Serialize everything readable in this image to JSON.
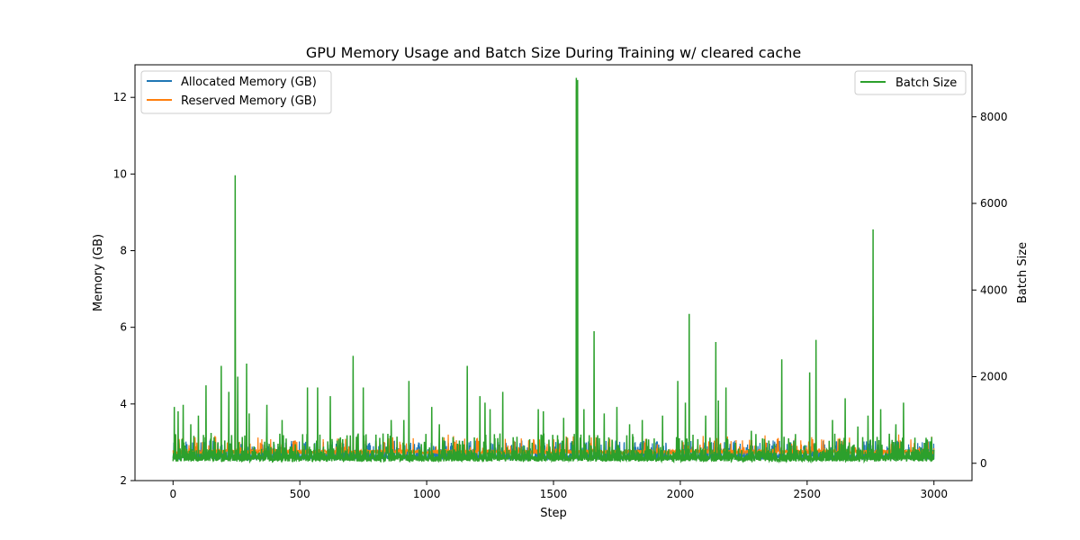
{
  "chart_data": {
    "type": "line",
    "title": "GPU Memory Usage and Batch Size During Training w/ cleared cache",
    "xlabel": "Step",
    "ylabel_left": "Memory (GB)",
    "ylabel_right": "Batch Size",
    "xlim": [
      -150,
      3150
    ],
    "ylim_left": [
      2,
      12.85
    ],
    "ylim_right": [
      -400,
      9200
    ],
    "x_ticks": [
      0,
      500,
      1000,
      1500,
      2000,
      2500,
      3000
    ],
    "y_left_ticks": [
      2,
      4,
      6,
      8,
      10,
      12
    ],
    "y_right_ticks": [
      0,
      2000,
      4000,
      6000,
      8000
    ],
    "grid": false,
    "legend_left": {
      "placement": "upper-left",
      "entries": [
        "Allocated Memory (GB)",
        "Reserved Memory (GB)"
      ]
    },
    "legend_right": {
      "placement": "upper-right",
      "entries": [
        "Batch Size"
      ]
    },
    "colors": {
      "allocated": "#1f77b4",
      "reserved": "#ff7f0e",
      "batch": "#2ca02c"
    },
    "series": [
      {
        "name": "Allocated Memory (GB)",
        "axis": "left",
        "color": "#1f77b4",
        "baseline": 2.55,
        "peaks": [
          [
            245,
            8.0
          ],
          [
            1590,
            12.2
          ],
          [
            2760,
            6.2
          ],
          [
            1160,
            4.8
          ],
          [
            710,
            4.9
          ]
        ]
      },
      {
        "name": "Reserved Memory (GB)",
        "axis": "left",
        "color": "#ff7f0e",
        "baseline": 2.75,
        "peaks": [
          [
            245,
            8.2
          ],
          [
            1590,
            12.3
          ],
          [
            2760,
            6.3
          ]
        ]
      },
      {
        "name": "Batch Size",
        "axis": "right",
        "color": "#2ca02c",
        "baseline": 40,
        "noise": 180,
        "peaks": [
          [
            5,
            1300
          ],
          [
            20,
            1200
          ],
          [
            40,
            1350
          ],
          [
            70,
            900
          ],
          [
            100,
            1100
          ],
          [
            130,
            1800
          ],
          [
            150,
            700
          ],
          [
            190,
            2250
          ],
          [
            220,
            1650
          ],
          [
            245,
            6650
          ],
          [
            255,
            2000
          ],
          [
            290,
            2300
          ],
          [
            300,
            1150
          ],
          [
            370,
            1350
          ],
          [
            430,
            1000
          ],
          [
            530,
            1750
          ],
          [
            570,
            1750
          ],
          [
            620,
            1550
          ],
          [
            660,
            600
          ],
          [
            710,
            2480
          ],
          [
            750,
            1750
          ],
          [
            860,
            1000
          ],
          [
            910,
            1000
          ],
          [
            930,
            1900
          ],
          [
            1020,
            1300
          ],
          [
            1050,
            900
          ],
          [
            1160,
            2250
          ],
          [
            1210,
            1550
          ],
          [
            1230,
            1400
          ],
          [
            1250,
            1250
          ],
          [
            1300,
            1650
          ],
          [
            1440,
            1250
          ],
          [
            1460,
            1200
          ],
          [
            1540,
            1050
          ],
          [
            1590,
            8900
          ],
          [
            1595,
            8850
          ],
          [
            1620,
            1250
          ],
          [
            1660,
            3050
          ],
          [
            1700,
            1150
          ],
          [
            1750,
            1300
          ],
          [
            1800,
            900
          ],
          [
            1850,
            1000
          ],
          [
            1930,
            1100
          ],
          [
            1990,
            1900
          ],
          [
            2020,
            1400
          ],
          [
            2035,
            3450
          ],
          [
            2100,
            1100
          ],
          [
            2140,
            2800
          ],
          [
            2150,
            1450
          ],
          [
            2180,
            1750
          ],
          [
            2280,
            750
          ],
          [
            2400,
            2400
          ],
          [
            2510,
            2100
          ],
          [
            2535,
            2850
          ],
          [
            2600,
            1000
          ],
          [
            2650,
            1500
          ],
          [
            2700,
            850
          ],
          [
            2740,
            1100
          ],
          [
            2760,
            5400
          ],
          [
            2790,
            1250
          ],
          [
            2850,
            900
          ],
          [
            2880,
            1400
          ]
        ]
      }
    ]
  }
}
